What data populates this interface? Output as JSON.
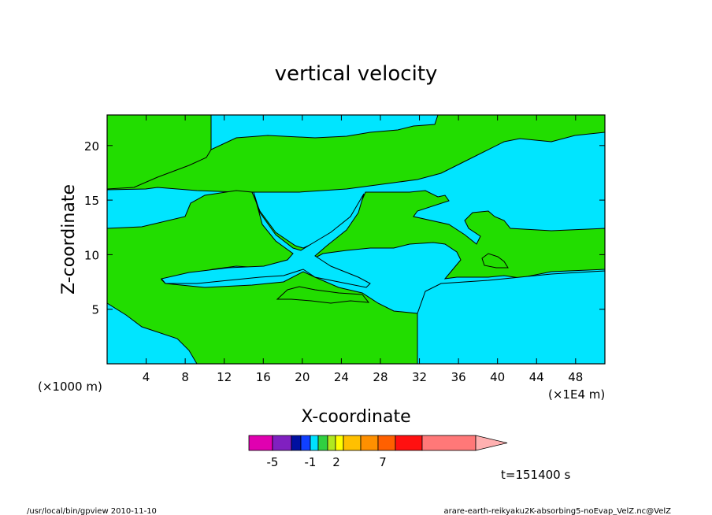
{
  "chart_data": {
    "type": "contour",
    "title": "vertical velocity",
    "xlabel": "X-coordinate",
    "ylabel": "Z-coordinate",
    "x_scale_note": "(×1000 m)",
    "x_unit_note": "(×1E4 m)",
    "xlim": [
      0,
      51
    ],
    "ylim": [
      0,
      22.8
    ],
    "x_ticks": [
      4,
      8,
      12,
      16,
      20,
      24,
      28,
      32,
      36,
      40,
      44,
      48
    ],
    "y_ticks": [
      5,
      10,
      15,
      20
    ],
    "regions": [
      {
        "name": "negative",
        "color": "#00e5ff"
      },
      {
        "name": "positive",
        "color": "#22dd00"
      }
    ],
    "colorbar": {
      "colors": [
        "#e000b0",
        "#8020c0",
        "#0010a0",
        "#1040ff",
        "#00e0ff",
        "#30d040",
        "#b0e820",
        "#ffff00",
        "#ffc000",
        "#ff9000",
        "#ff6000",
        "#ff1010",
        "#ff7878",
        "#ffb0b0"
      ],
      "labels": [
        "-5",
        "-1",
        "2",
        "7"
      ]
    },
    "annotation": "t=151400 s"
  },
  "footer": {
    "left": "/usr/local/bin/gpview  2010-11-10",
    "right": "arare-earth-reikyaku2K-absorbing5-noEvap_VelZ.nc@VelZ"
  }
}
